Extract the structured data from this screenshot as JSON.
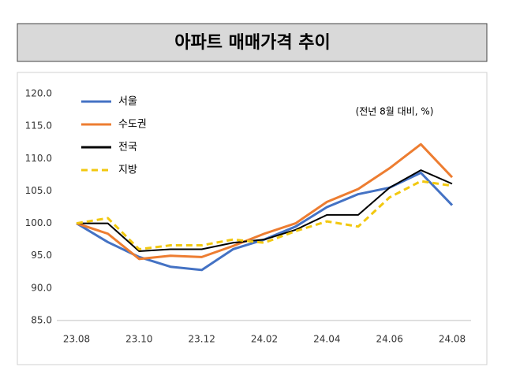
{
  "chart_data": {
    "type": "line",
    "title": "아파트 매매가격 추이",
    "annotation": "(전년 8월 대비, %)",
    "categories": [
      "23.08",
      null,
      "23.10",
      null,
      "23.12",
      null,
      "24.02",
      null,
      "24.04",
      null,
      "24.06",
      null,
      "24.08"
    ],
    "series": [
      {
        "name": "서울",
        "color": "#4472c4",
        "values": [
          100,
          97.1,
          94.8,
          93.3,
          92.8,
          96,
          97.5,
          99.5,
          102.5,
          104.5,
          105.5,
          107.8,
          102.8
        ]
      },
      {
        "name": "수도권",
        "color": "#ed7d31",
        "values": [
          100,
          98.4,
          94.5,
          95,
          94.8,
          96.5,
          98.4,
          100,
          103.3,
          105.3,
          108.5,
          112.2,
          107.1
        ]
      },
      {
        "name": "전국",
        "color": "#000000",
        "values": [
          100,
          100,
          95.7,
          96,
          96,
          97,
          97.5,
          99,
          101.3,
          101.3,
          105.5,
          108.2,
          106.1
        ]
      },
      {
        "name": "지방",
        "color": "#f2c80f",
        "dashed": true,
        "values": [
          100,
          100.8,
          96,
          96.6,
          96.6,
          97.5,
          97,
          98.8,
          100.3,
          99.5,
          104,
          106.5,
          105.8
        ]
      }
    ],
    "ylim": [
      85,
      120
    ],
    "yticks": [
      {
        "value": 85,
        "label": "85.0"
      },
      {
        "value": 90,
        "label": "90.0"
      },
      {
        "value": 95,
        "label": "95.0"
      },
      {
        "value": 100,
        "label": "100.0"
      },
      {
        "value": 105,
        "label": "105.0"
      },
      {
        "value": 110,
        "label": "110.0"
      },
      {
        "value": 115,
        "label": "115.0"
      },
      {
        "value": 120,
        "label": "120.0"
      }
    ],
    "grid": false
  }
}
